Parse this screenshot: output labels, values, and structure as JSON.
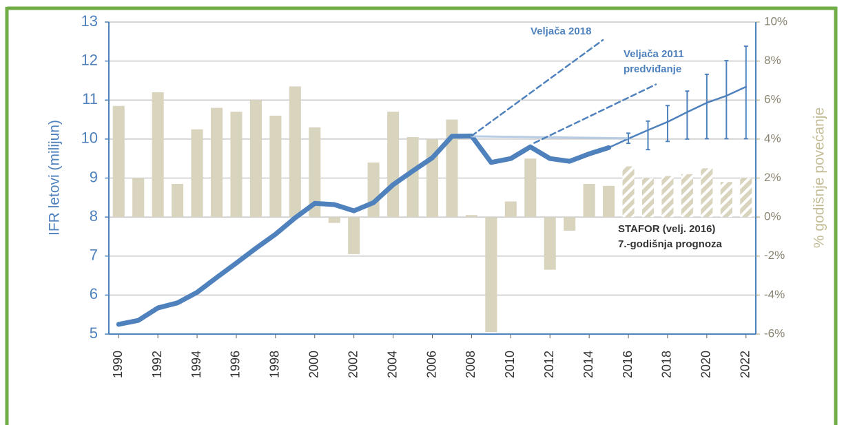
{
  "chart_data": {
    "type": "bar",
    "x_axis_label": null,
    "y_axis_label": "IFR letovi (milijun)",
    "y2_axis_label": "% godišnje povećanje",
    "xlim": [
      1989.5,
      2022.5
    ],
    "xticks": [
      1990,
      1992,
      1994,
      1996,
      1998,
      2000,
      2002,
      2004,
      2006,
      2008,
      2010,
      2012,
      2014,
      2016,
      2018,
      2020,
      2022
    ],
    "ylim": [
      5,
      13
    ],
    "yticks": [
      5,
      6,
      7,
      8,
      9,
      10,
      11,
      12,
      13
    ],
    "y2lim": [
      -6,
      10
    ],
    "y2ticks": [
      {
        "value": -6,
        "label": "-6%"
      },
      {
        "value": -4,
        "label": "-4%"
      },
      {
        "value": -2,
        "label": "-2%"
      },
      {
        "value": 0,
        "label": "0%"
      },
      {
        "value": 2,
        "label": "2%"
      },
      {
        "value": 4,
        "label": "4%"
      },
      {
        "value": 6,
        "label": "6%"
      },
      {
        "value": 8,
        "label": "8%"
      },
      {
        "value": 10,
        "label": "10%"
      }
    ],
    "grid": true,
    "bars": [
      {
        "axis": "y2",
        "color": "#d9d4be",
        "hatched": false,
        "x": [
          1990,
          1991,
          1992,
          1993,
          1994,
          1995,
          1996,
          1997,
          1998,
          1999,
          2000,
          2001,
          2002,
          2003,
          2004,
          2005,
          2006,
          2007,
          2008,
          2009,
          2010,
          2011,
          2012,
          2013,
          2014,
          2015
        ],
        "values": [
          5.7,
          2.0,
          6.4,
          1.7,
          4.5,
          5.6,
          5.4,
          6.0,
          5.2,
          6.7,
          4.6,
          -0.3,
          -1.9,
          2.8,
          5.4,
          4.1,
          4.0,
          5.0,
          0.1,
          -5.9,
          0.8,
          3.0,
          -2.7,
          -0.7,
          1.7,
          1.6
        ]
      },
      {
        "axis": "y2",
        "color": "#d9d4be",
        "hatched": true,
        "x": [
          2016,
          2017,
          2018,
          2019,
          2020,
          2021,
          2022
        ],
        "values": [
          2.6,
          2.0,
          2.1,
          2.2,
          2.5,
          1.8,
          2.0
        ]
      }
    ],
    "lines": [
      {
        "color": "#4f81bd",
        "width": 7,
        "dashed": false,
        "x": [
          1990,
          1991,
          1992,
          1993,
          1994,
          1995,
          1996,
          1997,
          1998,
          1999,
          2000,
          2001,
          2002,
          2003,
          2004,
          2005,
          2006,
          2007,
          2008,
          2009,
          2010,
          2011,
          2012,
          2013,
          2014,
          2015
        ],
        "values": [
          5.25,
          5.35,
          5.67,
          5.8,
          6.07,
          6.45,
          6.82,
          7.2,
          7.56,
          7.98,
          8.35,
          8.32,
          8.16,
          8.37,
          8.83,
          9.18,
          9.52,
          10.07,
          10.08,
          9.4,
          9.5,
          9.8,
          9.5,
          9.43,
          9.62,
          9.78
        ]
      },
      {
        "color": "#4f81bd",
        "width": 2.5,
        "dashed": false,
        "x": [
          2015,
          2016,
          2017,
          2018,
          2019,
          2020,
          2021,
          2022
        ],
        "values": [
          9.78,
          10.01,
          10.23,
          10.44,
          10.69,
          10.93,
          11.11,
          11.34
        ]
      },
      {
        "color": "#b8cce4",
        "width": 3,
        "dashed": false,
        "x": [
          2008,
          2016
        ],
        "values": [
          10.07,
          10.02
        ]
      },
      {
        "color": "#4f81bd",
        "width": 2.5,
        "dashed": true,
        "x": [
          2008,
          2014.7
        ],
        "values": [
          10.08,
          12.54
        ]
      },
      {
        "color": "#4f81bd",
        "width": 2.5,
        "dashed": true,
        "x": [
          2011.2,
          2017.4
        ],
        "values": [
          9.9,
          11.4
        ]
      }
    ],
    "error_bars": {
      "color": "#4f81bd",
      "x": [
        2016,
        2017,
        2018,
        2019,
        2020,
        2021,
        2022
      ],
      "high": [
        10.15,
        10.46,
        10.86,
        11.23,
        11.66,
        12.01,
        12.38
      ],
      "low": [
        9.89,
        9.73,
        9.94,
        10.0,
        10.01,
        10.01,
        10.01
      ]
    },
    "annotations": [
      "Veljača 2018",
      "Veljača 2011",
      "predviđanje",
      "STAFOR (velj. 2016)",
      "7.-godišnja prognoza"
    ]
  }
}
